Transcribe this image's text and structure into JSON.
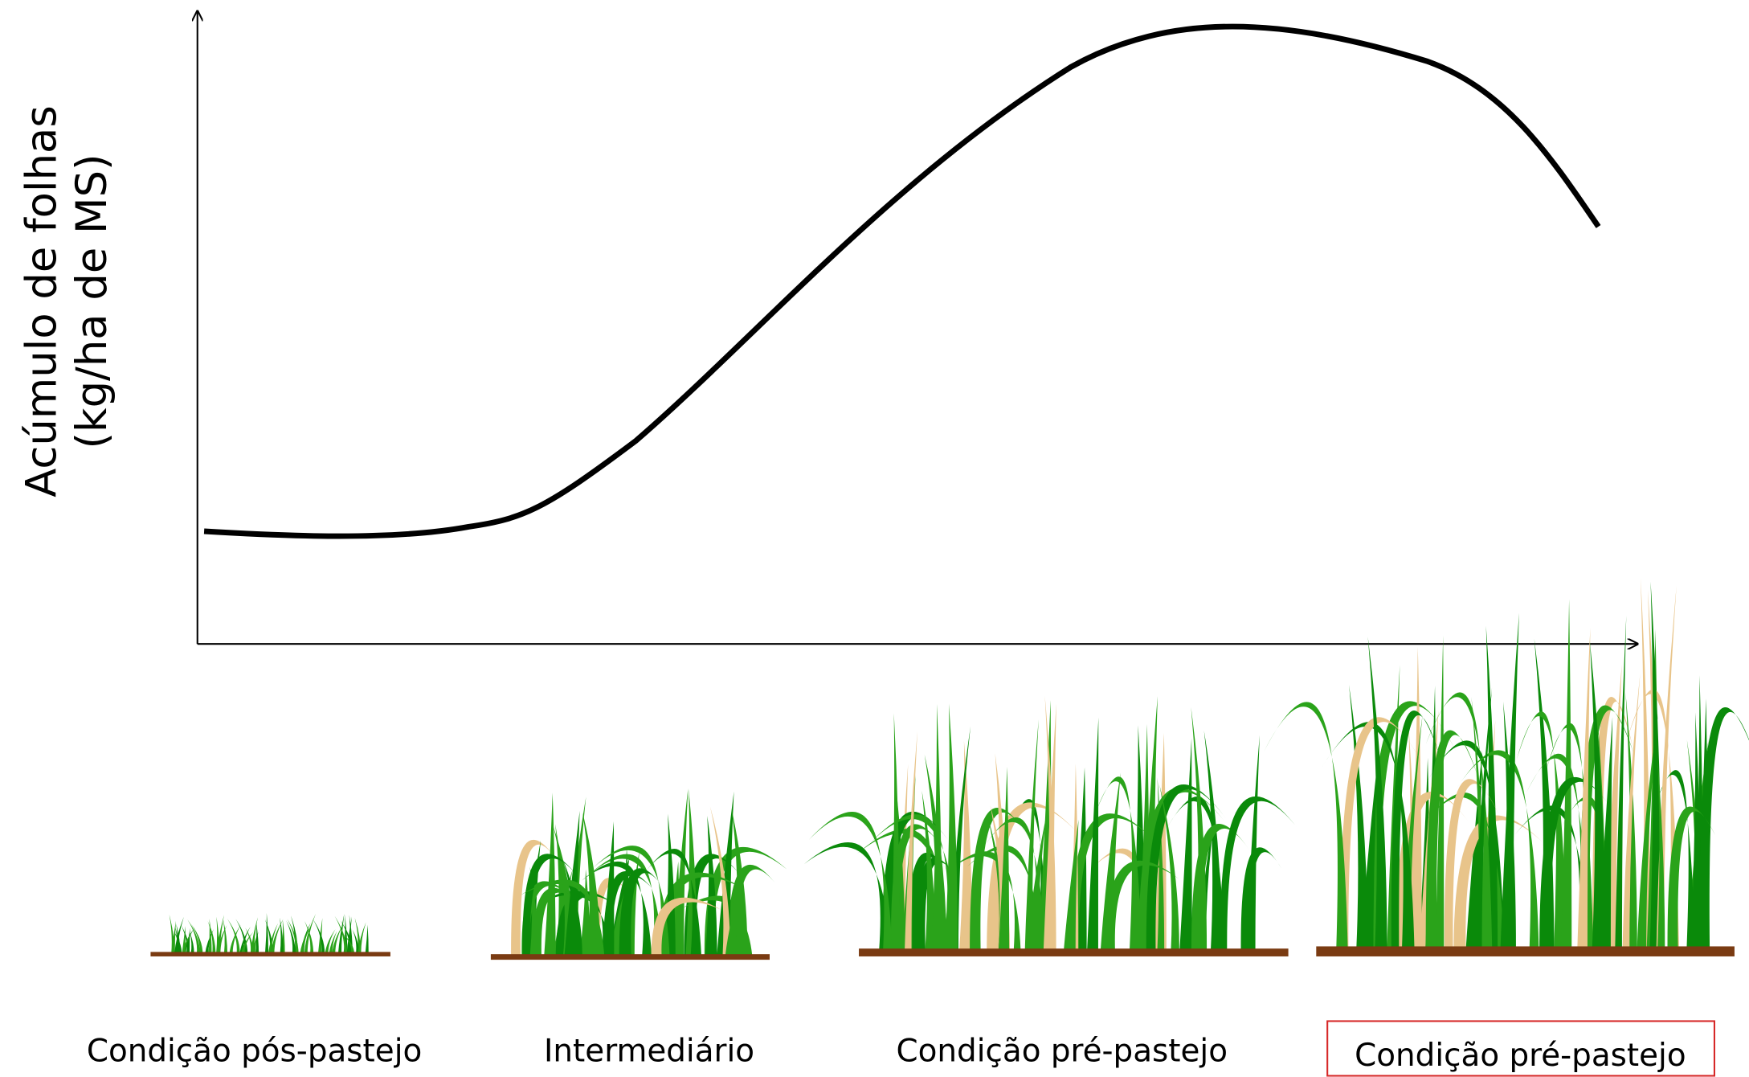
{
  "axis": {
    "y_label": [
      "Acúmulo de folhas",
      "(kg/ha de MS)"
    ]
  },
  "stages": [
    {
      "label": "Condição pós-pastejo"
    },
    {
      "label": "Intermediário"
    },
    {
      "label": "Condição pré-pastejo"
    },
    {
      "label": "Condição pré-pastejo"
    }
  ]
}
